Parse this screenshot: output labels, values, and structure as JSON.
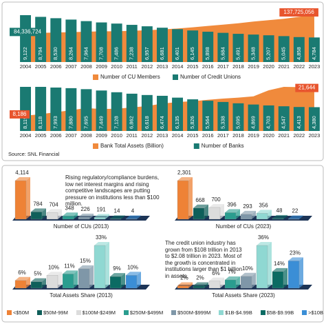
{
  "chart_data": [
    {
      "type": "combo",
      "categories": [
        "2004",
        "2005",
        "2006",
        "2007",
        "2008",
        "2009",
        "2010",
        "2011",
        "2012",
        "2013",
        "2014",
        "2015",
        "2016",
        "2017",
        "2018",
        "2019",
        "2020",
        "2021",
        "2022",
        "2023"
      ],
      "series": [
        {
          "name": "Number of CU Members",
          "color": "#f08a3c",
          "kind": "area",
          "values": [
            84336724,
            85500000,
            86800000,
            87800000,
            89000000,
            90300000,
            90500000,
            91800000,
            93300000,
            95700000,
            98600000,
            102000000,
            106000000,
            110000000,
            114000000,
            119000000,
            123000000,
            127000000,
            133000000,
            137725056
          ],
          "value_labels": [
            "84,336,724",
            null,
            null,
            null,
            null,
            null,
            null,
            null,
            null,
            null,
            null,
            null,
            null,
            null,
            null,
            null,
            null,
            null,
            null,
            "137,725,056"
          ]
        },
        {
          "name": "Number of Credit Unions",
          "color": "#1a7a72",
          "kind": "bar",
          "values": [
            9122,
            8794,
            8530,
            8264,
            7964,
            7708,
            7486,
            7238,
            6957,
            6681,
            6401,
            6145,
            5898,
            5684,
            5491,
            5348,
            5207,
            5045,
            4858,
            4784
          ],
          "value_labels": [
            "9,122",
            "8,794",
            "8,530",
            "8,264",
            "7,964",
            "7,708",
            "7,486",
            "7,238",
            "6,957",
            "6,681",
            "6,401",
            "6,145",
            "5,898",
            "5,684",
            "5,491",
            "5,348",
            "5,207",
            "5,045",
            "4,858",
            "4,784"
          ]
        }
      ]
    },
    {
      "type": "combo",
      "categories": [
        "2004",
        "2005",
        "2006",
        "2007",
        "2008",
        "2009",
        "2010",
        "2011",
        "2012",
        "2013",
        "2014",
        "2015",
        "2016",
        "2017",
        "2018",
        "2019",
        "2020",
        "2021",
        "2022",
        "2023"
      ],
      "series": [
        {
          "name": "Bank Total Assets (Billion)",
          "color": "#f08a3c",
          "kind": "area",
          "values": [
            8186,
            9040,
            10090,
            11176,
            12311,
            11827,
            11955,
            12647,
            13390,
            14712,
            15553,
            15968,
            16780,
            17415,
            17943,
            18645,
            21883,
            23719,
            23602,
            21644
          ],
          "value_labels": [
            "8,186",
            null,
            null,
            null,
            null,
            null,
            null,
            null,
            null,
            null,
            null,
            null,
            null,
            null,
            null,
            null,
            null,
            null,
            null,
            "21,644"
          ]
        },
        {
          "name": "Number of Banks",
          "color": "#1a7a72",
          "kind": "bar",
          "values": [
            8119,
            8118,
            7993,
            7880,
            7695,
            7449,
            7128,
            6862,
            6618,
            6474,
            6135,
            5826,
            5564,
            5338,
            5095,
            4869,
            4703,
            4547,
            4413,
            4380
          ],
          "value_labels": [
            "8,119",
            "8,118",
            "7,993",
            "7,880",
            "7,695",
            "7,449",
            "7,128",
            "6,862",
            "6,618",
            "6,474",
            "6,135",
            "5,826",
            "5,564",
            "5,338",
            "5,095",
            "4,869",
            "4,703",
            "4,547",
            "4,413",
            "4,380"
          ]
        }
      ]
    },
    {
      "type": "bar3d",
      "title": "Number of CUs (2013)",
      "values": [
        4114,
        784,
        704,
        348,
        226,
        191,
        14,
        4
      ],
      "value_labels": [
        "4,114",
        "784",
        "704",
        "348",
        "226",
        "191",
        "14",
        "4"
      ],
      "annotation": "Rising regulatory/compliance burdens, low net interest margins and rising competitive landscapes are putting pressure on institutions less than $100 million."
    },
    {
      "type": "bar3d",
      "title": "Number of CUs (2023)",
      "values": [
        2301,
        668,
        700,
        396,
        293,
        356,
        48,
        22
      ],
      "value_labels": [
        "2,301",
        "668",
        "700",
        "396",
        "293",
        "356",
        "48",
        "22"
      ]
    },
    {
      "type": "bar3d",
      "title": "Total Assets Share (2013)",
      "values": [
        6,
        5,
        10,
        11,
        15,
        33,
        9,
        10
      ],
      "value_labels": [
        "6%",
        "5%",
        "10%",
        "11%",
        "15%",
        "33%",
        "9%",
        "10%"
      ]
    },
    {
      "type": "bar3d",
      "title": "Total Assets Share (2023)",
      "values": [
        2,
        2,
        6,
        7,
        10,
        36,
        14,
        23
      ],
      "value_labels": [
        "2%",
        "2%",
        "6%",
        "7%",
        "10%",
        "36%",
        "14%",
        "23%"
      ],
      "annotation": "The credit union industry has grown from $108 trillion in 2013 to $2.08 trillion in 2023. Most of the growth is concentrated in institutions larger than $1 billion in assets."
    }
  ],
  "source": "Source: SNL Financial",
  "legend": {
    "labels": [
      "<$50M",
      "$50M-99M",
      "$100M-$249M",
      "$250M-$499M",
      "$500M-$999M",
      "$1B-$4.99B",
      "$5B-$9.99B",
      ">$10B"
    ],
    "colors": [
      "#ee8236",
      "#0f5f5a",
      "#dcdcdc",
      "#2a9d8f",
      "#7f97a8",
      "#8fd8d2",
      "#0b6b63",
      "#3b8ed6"
    ]
  }
}
